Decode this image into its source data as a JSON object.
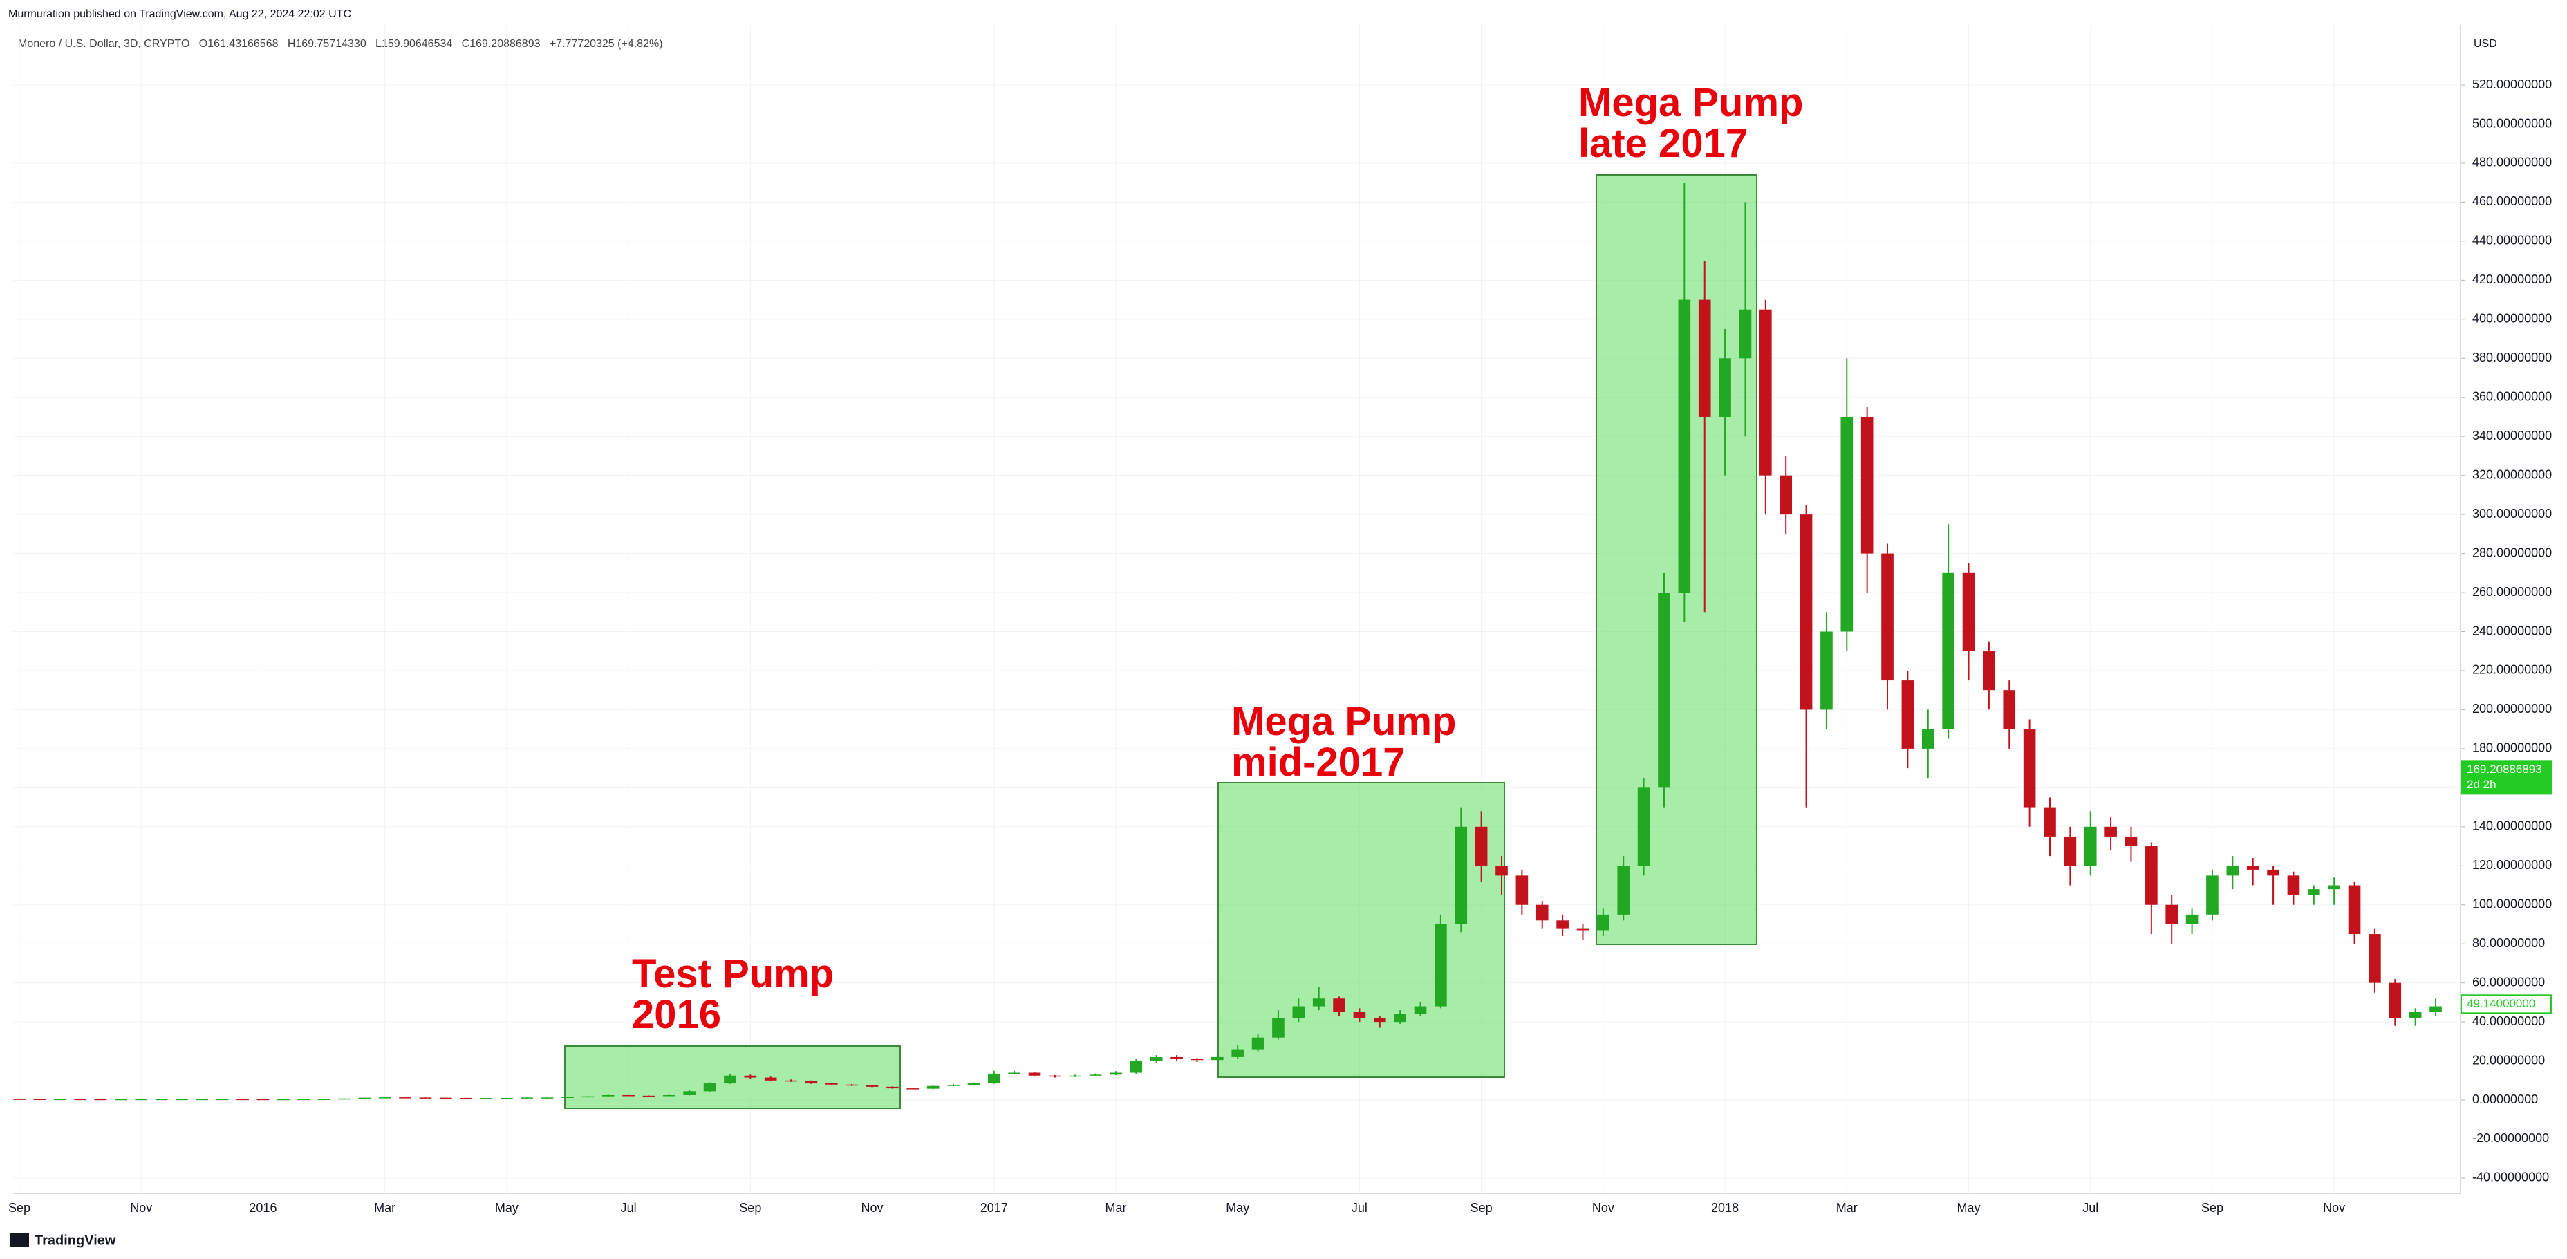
{
  "header": {
    "publisher": "Murmuration published on TradingView.com, Aug 22, 2024 22:02 UTC",
    "legend": "Monero / U.S. Dollar, 3D, CRYPTO   O161.43166568   H169.75714330   L159.90646534   C169.20886893   +7.77720325 (+4.82%)",
    "currency": "USD"
  },
  "footer": {
    "logo": "TradingView"
  },
  "chart_data": {
    "type": "candlestick",
    "categories": [
      "Sep",
      null,
      null,
      null,
      null,
      null,
      "Nov",
      null,
      null,
      null,
      null,
      null,
      "2016",
      null,
      null,
      null,
      null,
      null,
      "Mar",
      null,
      null,
      null,
      null,
      null,
      "May",
      null,
      null,
      null,
      null,
      null,
      "Jul",
      null,
      null,
      null,
      null,
      null,
      "Sep",
      null,
      null,
      null,
      null,
      null,
      "Nov",
      null,
      null,
      null,
      null,
      null,
      "2017",
      null,
      null,
      null,
      null,
      null,
      "Mar",
      null,
      null,
      null,
      null,
      null,
      "May",
      null,
      null,
      null,
      null,
      null,
      "Jul",
      null,
      null,
      null,
      null,
      null,
      "Sep",
      null,
      null,
      null,
      null,
      null,
      "Nov",
      null,
      null,
      null,
      null,
      null,
      "2018",
      null,
      null,
      null,
      null,
      null,
      "Mar",
      null,
      null,
      null,
      null,
      null,
      "May",
      null,
      null,
      null,
      null,
      null,
      "Jul",
      null,
      null,
      null,
      null,
      null,
      "Sep",
      null,
      null,
      null,
      null,
      null,
      "Nov",
      null,
      null,
      null,
      null,
      null
    ],
    "open": [
      0.6,
      0.55,
      0.5,
      0.5,
      0.48,
      0.45,
      0.45,
      0.48,
      0.5,
      0.5,
      0.5,
      0.5,
      0.48,
      0.45,
      0.45,
      0.5,
      0.55,
      0.8,
      1.2,
      1.4,
      1.3,
      1.2,
      1.1,
      1.0,
      1.05,
      1.1,
      1.3,
      1.3,
      1.6,
      1.9,
      2.5,
      2.2,
      2.0,
      2.5,
      4.5,
      8.5,
      12.5,
      11.5,
      10,
      9.8,
      8.5,
      7.9,
      7.5,
      6.8,
      6,
      5.8,
      7.2,
      7.8,
      8.5,
      13.5,
      14,
      12.5,
      12,
      12.5,
      13,
      14,
      20,
      22,
      21,
      20.5,
      22,
      26,
      32,
      42,
      48,
      52,
      45,
      42,
      40,
      44,
      48,
      90,
      140,
      120,
      115,
      100,
      92,
      88,
      87,
      95,
      120,
      160,
      260,
      410,
      350,
      380,
      405,
      320,
      300,
      200,
      240,
      350,
      280,
      215,
      180,
      190,
      270,
      230,
      210,
      190,
      150,
      135,
      120,
      140,
      135,
      130,
      100,
      90,
      95,
      115,
      120,
      118,
      115,
      105,
      108,
      110,
      85,
      60,
      42,
      45
    ],
    "high": [
      0.65,
      0.6,
      0.55,
      0.52,
      0.5,
      0.48,
      0.5,
      0.52,
      0.53,
      0.53,
      0.53,
      0.52,
      0.5,
      0.48,
      0.52,
      0.58,
      0.85,
      1.3,
      1.5,
      1.5,
      1.35,
      1.25,
      1.15,
      1.1,
      1.15,
      1.4,
      1.4,
      1.7,
      2.0,
      2.7,
      2.6,
      2.3,
      2.7,
      5,
      9,
      13.5,
      13,
      12,
      10.5,
      10,
      8.8,
      8.2,
      7.8,
      7,
      6.2,
      7.6,
      8.2,
      9,
      15,
      15,
      14.5,
      12.8,
      13,
      13.6,
      14.8,
      21,
      23,
      23,
      21.5,
      23,
      28,
      34,
      46,
      52,
      58,
      53,
      47,
      43,
      46,
      50,
      95,
      150,
      148,
      125,
      118,
      102,
      95,
      90,
      98,
      125,
      165,
      270,
      470,
      430,
      395,
      460,
      410,
      330,
      305,
      250,
      380,
      355,
      285,
      220,
      200,
      295,
      275,
      235,
      215,
      195,
      155,
      140,
      148,
      145,
      140,
      132,
      105,
      98,
      118,
      125,
      124,
      120,
      117,
      110,
      114,
      112,
      88,
      62,
      47,
      52
    ],
    "low": [
      0.52,
      0.48,
      0.48,
      0.46,
      0.43,
      0.43,
      0.44,
      0.47,
      0.48,
      0.48,
      0.48,
      0.46,
      0.43,
      0.43,
      0.44,
      0.49,
      0.53,
      0.78,
      1.15,
      1.25,
      1.15,
      1.05,
      0.95,
      0.97,
      1.02,
      1.07,
      1.22,
      1.25,
      1.55,
      1.85,
      2.1,
      1.9,
      1.95,
      2.4,
      4.3,
      8.2,
      11,
      9.6,
      9.3,
      8.2,
      7.6,
      7.2,
      6.5,
      5.8,
      5.5,
      5.6,
      7,
      7.6,
      8.3,
      13,
      12,
      11.5,
      11.8,
      12.3,
      12.8,
      13.5,
      19,
      20,
      19.5,
      20,
      21,
      25,
      31,
      40,
      46,
      43,
      40,
      37,
      39,
      43,
      47,
      86,
      112,
      105,
      95,
      88,
      84,
      82,
      84,
      92,
      115,
      150,
      245,
      250,
      320,
      340,
      300,
      290,
      150,
      190,
      230,
      260,
      200,
      170,
      165,
      185,
      215,
      200,
      180,
      140,
      125,
      110,
      115,
      128,
      122,
      85,
      80,
      85,
      92,
      108,
      110,
      100,
      100,
      100,
      100,
      80,
      55,
      38,
      38,
      43
    ],
    "close": [
      0.55,
      0.5,
      0.5,
      0.48,
      0.45,
      0.45,
      0.48,
      0.5,
      0.5,
      0.5,
      0.5,
      0.48,
      0.45,
      0.45,
      0.5,
      0.55,
      0.8,
      1.2,
      1.4,
      1.3,
      1.2,
      1.1,
      1.0,
      1.05,
      1.1,
      1.3,
      1.3,
      1.6,
      1.9,
      2.5,
      2.2,
      2.0,
      2.5,
      4.5,
      8.5,
      12.5,
      11.5,
      10,
      9.8,
      8.5,
      7.9,
      7.5,
      6.8,
      6,
      5.8,
      7.2,
      7.8,
      8.5,
      13.5,
      14,
      12.5,
      12,
      12.5,
      13,
      14,
      20,
      22,
      21,
      20.5,
      22,
      26,
      32,
      42,
      48,
      52,
      45,
      42,
      40,
      44,
      48,
      90,
      140,
      120,
      115,
      100,
      92,
      88,
      87,
      95,
      120,
      160,
      260,
      410,
      350,
      380,
      405,
      320,
      300,
      200,
      240,
      350,
      280,
      215,
      180,
      190,
      270,
      230,
      210,
      190,
      150,
      135,
      120,
      140,
      135,
      130,
      100,
      90,
      95,
      115,
      120,
      118,
      115,
      105,
      108,
      110,
      85,
      60,
      42,
      45,
      48
    ],
    "up_color": "#22a822",
    "down_color": "#c2121b",
    "ylim": [
      -47.1,
      551.9
    ],
    "yticks": [
      {
        "value": -40,
        "label": "-40.00000000"
      },
      {
        "value": -20,
        "label": "-20.00000000"
      },
      {
        "value": 0,
        "label": "0.00000000"
      },
      {
        "value": 20,
        "label": "20.00000000"
      },
      {
        "value": 40,
        "label": "40.00000000"
      },
      {
        "value": 60,
        "label": "60.00000000"
      },
      {
        "value": 80,
        "label": "80.00000000"
      },
      {
        "value": 100,
        "label": "100.00000000"
      },
      {
        "value": 120,
        "label": "120.00000000"
      },
      {
        "value": 140,
        "label": "140.00000000"
      },
      {
        "value": 160,
        "label": "160.00000000"
      },
      {
        "value": 180,
        "label": "180.00000000"
      },
      {
        "value": 200,
        "label": "200.00000000"
      },
      {
        "value": 220,
        "label": "220.00000000"
      },
      {
        "value": 240,
        "label": "240.00000000"
      },
      {
        "value": 260,
        "label": "260.00000000"
      },
      {
        "value": 280,
        "label": "280.00000000"
      },
      {
        "value": 300,
        "label": "300.00000000"
      },
      {
        "value": 320,
        "label": "320.00000000"
      },
      {
        "value": 340,
        "label": "340.00000000"
      },
      {
        "value": 360,
        "label": "360.00000000"
      },
      {
        "value": 380,
        "label": "380.00000000"
      },
      {
        "value": 400,
        "label": "400.00000000"
      },
      {
        "value": 420,
        "label": "420.00000000"
      },
      {
        "value": 440,
        "label": "440.00000000"
      },
      {
        "value": 460,
        "label": "460.00000000"
      },
      {
        "value": 480,
        "label": "480.00000000"
      },
      {
        "value": 500,
        "label": "500.00000000"
      },
      {
        "value": 520,
        "label": "520.00000000"
      }
    ],
    "grid": true,
    "price_tags": [
      {
        "value": 169.20886893,
        "label": "169.20886893",
        "sublabel": "2d 2h",
        "color": "#22cc22",
        "filled": true
      },
      {
        "value": 49.14,
        "label": "49.14000000",
        "color": "#22cc22",
        "filled": false
      }
    ],
    "annotations": [
      {
        "lines": [
          "Test Pump",
          "2016"
        ],
        "color": "#e8000b"
      },
      {
        "lines": [
          "Mega Pump",
          "mid-2017"
        ],
        "color": "#e8000b"
      },
      {
        "lines": [
          "Mega Pump",
          "late 2017"
        ],
        "color": "#e8000b"
      }
    ]
  }
}
